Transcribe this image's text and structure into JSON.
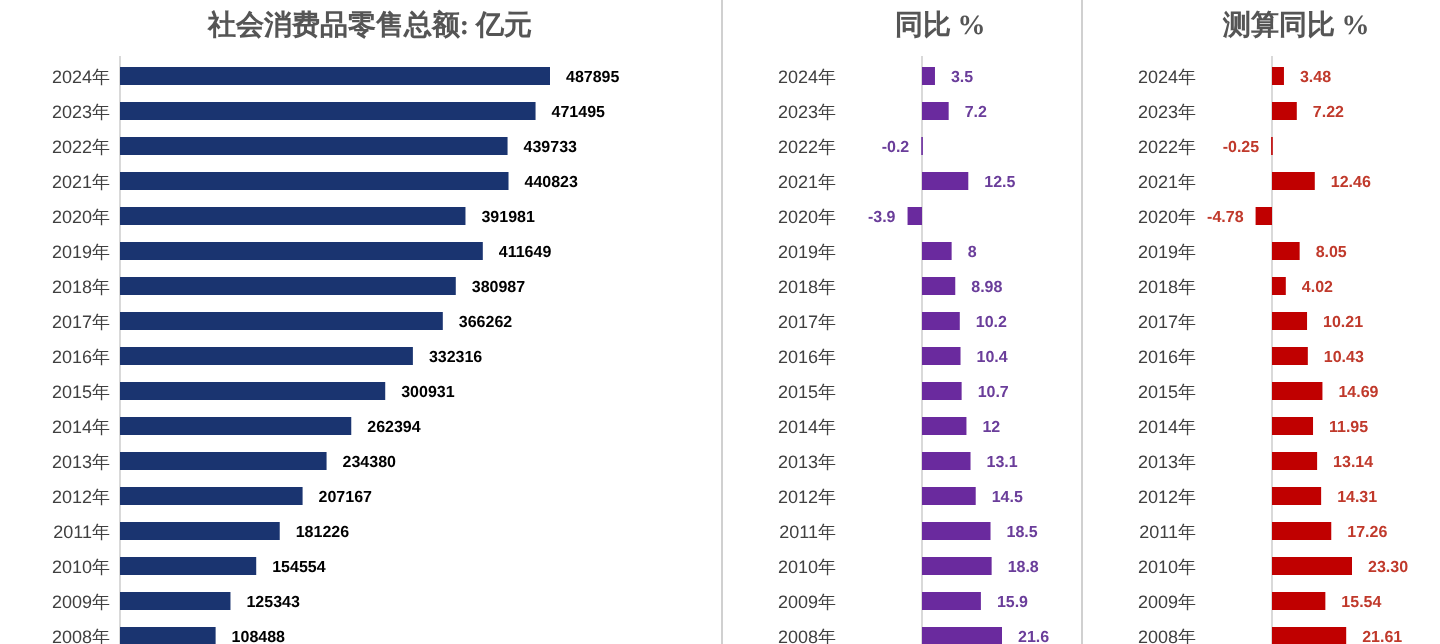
{
  "chart_data": [
    {
      "type": "bar",
      "orientation": "horizontal",
      "title": "社会消费品零售总额: 亿元",
      "categories": [
        "2024年",
        "2023年",
        "2022年",
        "2021年",
        "2020年",
        "2019年",
        "2018年",
        "2017年",
        "2016年",
        "2015年",
        "2014年",
        "2013年",
        "2012年",
        "2011年",
        "2010年",
        "2009年",
        "2008年"
      ],
      "color": "#1a3470",
      "data_labels": true,
      "values": [
        487895,
        471495,
        439733,
        440823,
        391981,
        411649,
        380987,
        366262,
        332316,
        300931,
        262394,
        234380,
        207167,
        181226,
        154554,
        125343,
        108488
      ]
    },
    {
      "type": "bar",
      "orientation": "horizontal",
      "title": "同比 %",
      "categories": [
        "2024年",
        "2023年",
        "2022年",
        "2021年",
        "2020年",
        "2019年",
        "2018年",
        "2017年",
        "2016年",
        "2015年",
        "2014年",
        "2013年",
        "2012年",
        "2011年",
        "2010年",
        "2009年",
        "2008年"
      ],
      "color": "#6a2a9e",
      "data_labels": true,
      "values": [
        3.5,
        7.2,
        -0.2,
        12.5,
        -3.9,
        8,
        8.98,
        10.2,
        10.4,
        10.7,
        12,
        13.1,
        14.5,
        18.5,
        18.8,
        15.9,
        21.6
      ]
    },
    {
      "type": "bar",
      "orientation": "horizontal",
      "title": "测算同比 %",
      "categories": [
        "2024年",
        "2023年",
        "2022年",
        "2021年",
        "2020年",
        "2019年",
        "2018年",
        "2017年",
        "2016年",
        "2015年",
        "2014年",
        "2013年",
        "2012年",
        "2011年",
        "2010年",
        "2009年",
        "2008年"
      ],
      "color": "#c00000",
      "values": [
        3.48,
        7.22,
        -0.25,
        12.46,
        -4.78,
        8.05,
        4.02,
        10.21,
        10.43,
        14.69,
        11.95,
        13.14,
        14.31,
        17.26,
        23.3,
        15.54,
        21.61
      ],
      "value_labels": [
        "3.48",
        "7.22",
        "-0.25",
        "12.46",
        "-4.78",
        "8.05",
        "4.02",
        "10.21",
        "10.43",
        "14.69",
        "11.95",
        "13.14",
        "14.31",
        "17.26",
        "23.30",
        "15.54",
        "21.61"
      ]
    }
  ]
}
